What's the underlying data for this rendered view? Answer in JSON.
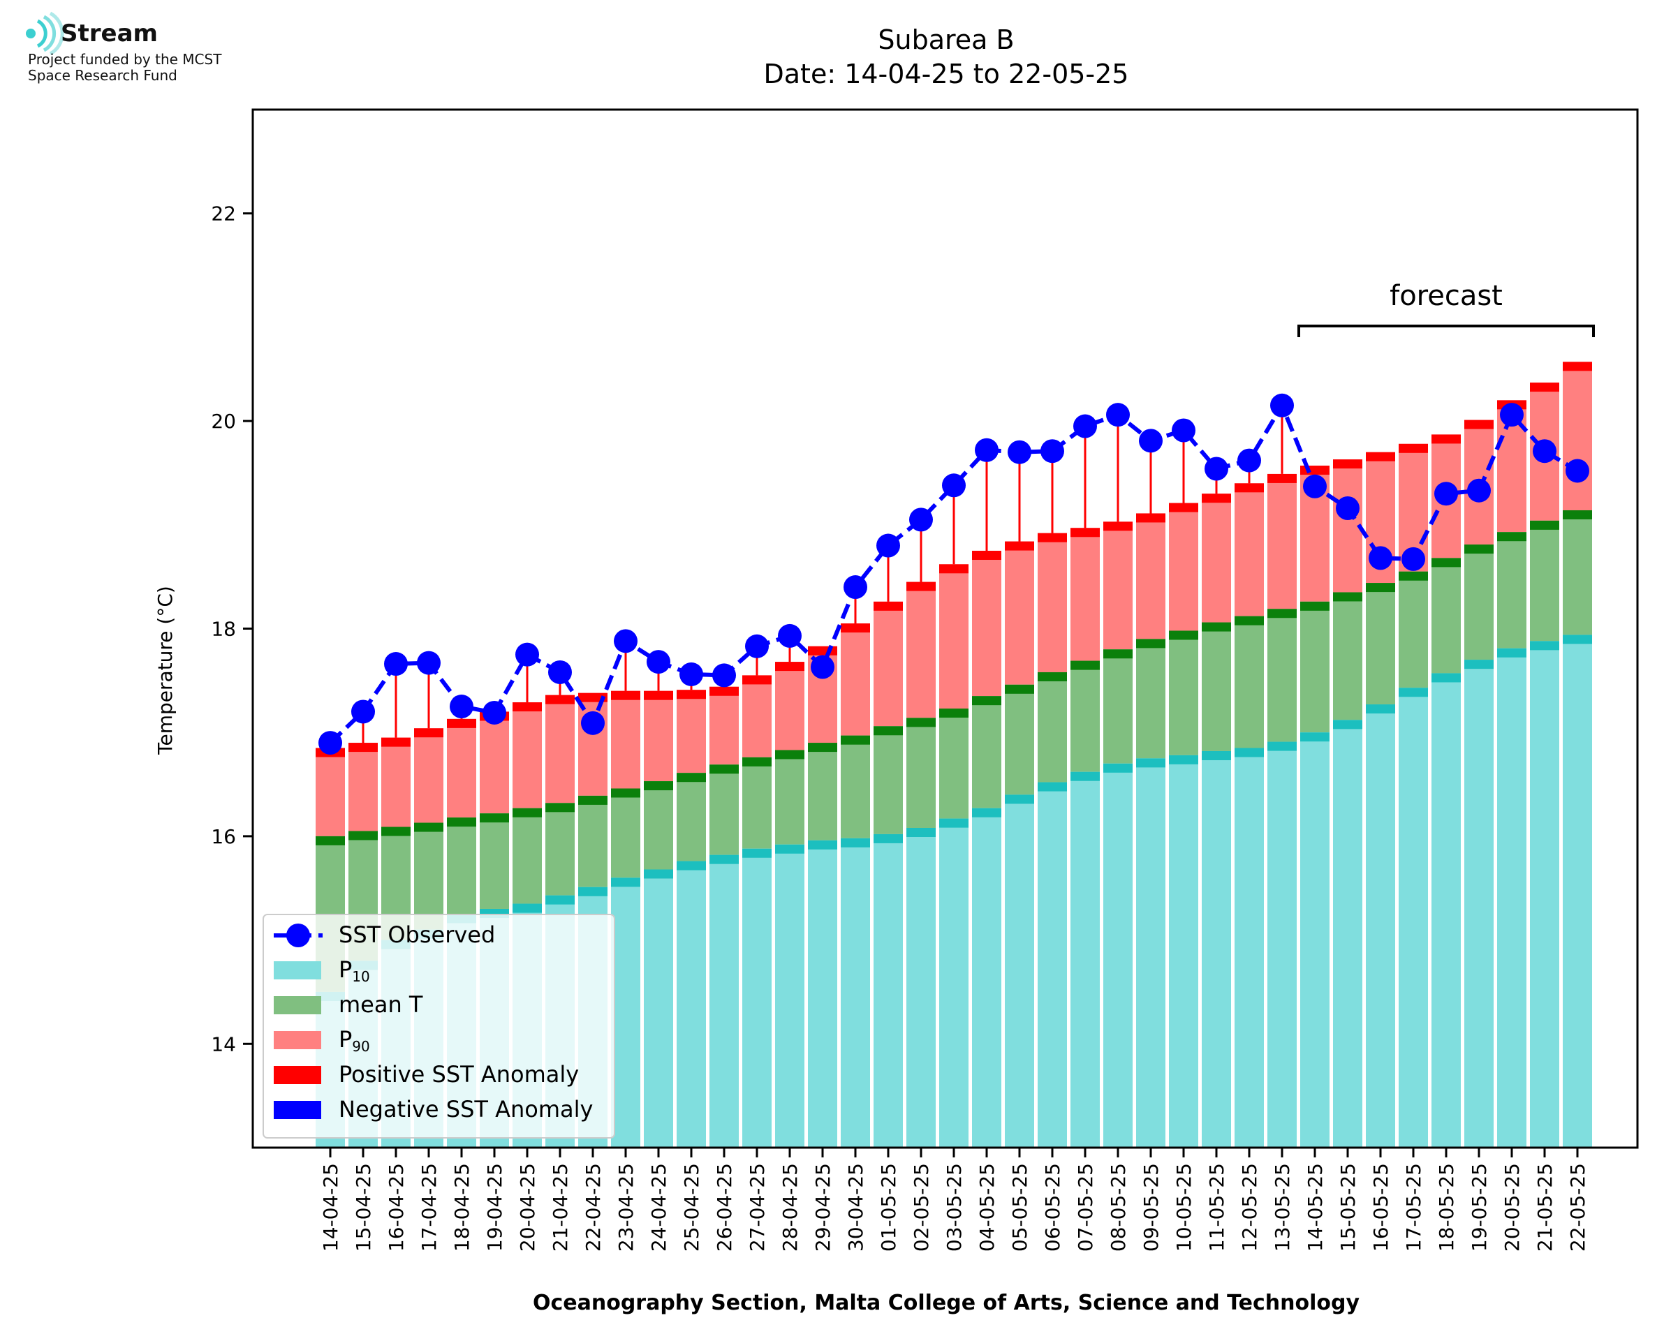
{
  "logo": {
    "name": "Stream",
    "funding_line1": "Project funded by the MCST",
    "funding_line2": "Space Research Fund"
  },
  "footer": "Oceanography Section, Malta College of Arts, Science and Technology",
  "colors": {
    "p10": "#80dede",
    "p10_cap": "#1cbfbf",
    "mean": "#80bf80",
    "mean_cap": "#0b800b",
    "p90": "#ff8080",
    "p90_cap": "#ff0000",
    "observed": "#0000ff",
    "negative": "#0000ff"
  },
  "chart_data": {
    "type": "bar",
    "title": "Subarea B",
    "subtitle": "Date: 14-04-25 to 22-05-25",
    "ylabel": "Temperature (°C)",
    "xlabel": "",
    "ylim": [
      13,
      23
    ],
    "yticks": [
      14,
      16,
      18,
      20,
      22
    ],
    "grid": false,
    "legend_position": "lower-left",
    "annotation": {
      "text": "forecast",
      "from": "14-05-25",
      "to": "22-05-25"
    },
    "categories": [
      "14-04-25",
      "15-04-25",
      "16-04-25",
      "17-04-25",
      "18-04-25",
      "19-04-25",
      "20-04-25",
      "21-04-25",
      "22-04-25",
      "23-04-25",
      "24-04-25",
      "25-04-25",
      "26-04-25",
      "27-04-25",
      "28-04-25",
      "29-04-25",
      "30-04-25",
      "01-05-25",
      "02-05-25",
      "03-05-25",
      "04-05-25",
      "05-05-25",
      "06-05-25",
      "07-05-25",
      "08-05-25",
      "09-05-25",
      "10-05-25",
      "11-05-25",
      "12-05-25",
      "13-05-25",
      "14-05-25",
      "15-05-25",
      "16-05-25",
      "17-05-25",
      "18-05-25",
      "19-05-25",
      "20-05-25",
      "21-05-25",
      "22-05-25"
    ],
    "series": [
      {
        "name": "SST Observed",
        "kind": "line-marker",
        "values": [
          16.9,
          17.2,
          17.66,
          17.67,
          17.25,
          17.19,
          17.75,
          17.58,
          17.09,
          17.88,
          17.68,
          17.56,
          17.55,
          17.83,
          17.93,
          17.63,
          18.4,
          18.8,
          19.05,
          19.38,
          19.72,
          19.7,
          19.71,
          19.95,
          20.06,
          19.81,
          19.91,
          19.54,
          19.62,
          20.15,
          19.37,
          19.16,
          18.68,
          18.67,
          19.3,
          19.33,
          20.06,
          19.71,
          19.52
        ]
      },
      {
        "name": "P₁₀",
        "kind": "bar",
        "values": [
          14.5,
          14.8,
          15.0,
          15.1,
          15.25,
          15.3,
          15.35,
          15.43,
          15.51,
          15.6,
          15.68,
          15.76,
          15.82,
          15.88,
          15.92,
          15.96,
          15.98,
          16.02,
          16.08,
          16.17,
          16.27,
          16.4,
          16.52,
          16.62,
          16.7,
          16.75,
          16.78,
          16.82,
          16.85,
          16.91,
          17.0,
          17.12,
          17.27,
          17.43,
          17.57,
          17.7,
          17.81,
          17.88,
          17.94
        ]
      },
      {
        "name": "mean T",
        "kind": "bar",
        "values": [
          16.0,
          16.05,
          16.09,
          16.13,
          16.18,
          16.22,
          16.27,
          16.32,
          16.39,
          16.46,
          16.53,
          16.61,
          16.69,
          16.76,
          16.83,
          16.9,
          16.97,
          17.06,
          17.14,
          17.23,
          17.35,
          17.46,
          17.58,
          17.69,
          17.8,
          17.9,
          17.98,
          18.06,
          18.12,
          18.19,
          18.26,
          18.35,
          18.44,
          18.55,
          18.68,
          18.81,
          18.93,
          19.04,
          19.14
        ]
      },
      {
        "name": "P₉₀",
        "kind": "bar",
        "values": [
          16.85,
          16.9,
          16.95,
          17.04,
          17.13,
          17.2,
          17.29,
          17.36,
          17.38,
          17.4,
          17.4,
          17.41,
          17.44,
          17.55,
          17.68,
          17.83,
          18.05,
          18.26,
          18.45,
          18.62,
          18.75,
          18.84,
          18.92,
          18.97,
          19.03,
          19.11,
          19.21,
          19.3,
          19.4,
          19.49,
          19.57,
          19.63,
          19.7,
          19.78,
          19.87,
          20.01,
          20.2,
          20.37,
          20.57
        ]
      }
    ],
    "legend": [
      {
        "key": "observed",
        "label": "SST Observed"
      },
      {
        "key": "p10",
        "label": "P",
        "sub": "10"
      },
      {
        "key": "mean",
        "label": "mean T"
      },
      {
        "key": "p90",
        "label": "P",
        "sub": "90"
      },
      {
        "key": "positive",
        "label": "Positive SST Anomaly"
      },
      {
        "key": "negative",
        "label": "Negative SST Anomaly"
      }
    ]
  }
}
